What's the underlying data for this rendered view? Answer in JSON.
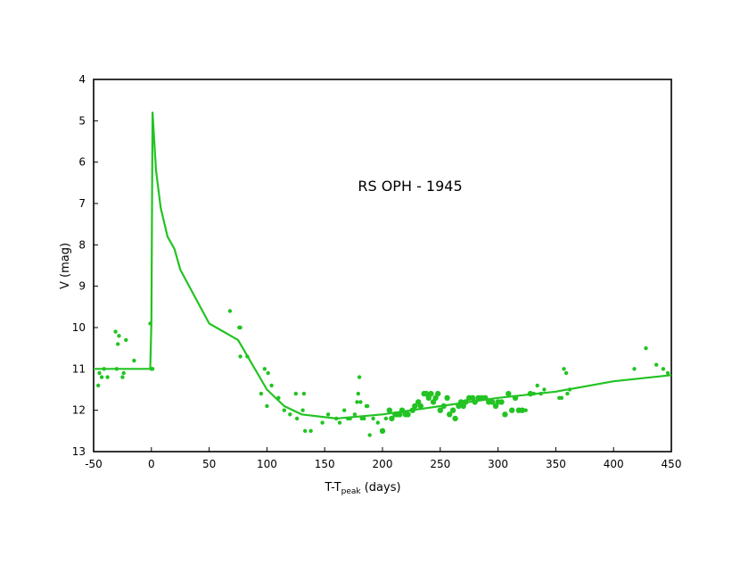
{
  "chart_data": {
    "type": "scatter",
    "title": "RS OPH - 1945",
    "xlabel_main": "T-T",
    "xlabel_sub": "peak",
    "xlabel_tail": " (days)",
    "ylabel": "V (mag)",
    "xlim": [
      -50,
      450
    ],
    "ylim": [
      4,
      13
    ],
    "y_inverted": true,
    "xticks": [
      -50,
      0,
      50,
      100,
      150,
      200,
      250,
      300,
      350,
      400,
      450
    ],
    "yticks": [
      4,
      5,
      6,
      7,
      8,
      9,
      10,
      11,
      12,
      13
    ],
    "grid": false,
    "legend": "none",
    "color": "#22c322",
    "series": [
      {
        "type": "line",
        "x": [
          -50,
          -1,
          0,
          1,
          4,
          8,
          14,
          20,
          25,
          50,
          75,
          100,
          115,
          130,
          160,
          200,
          300,
          350,
          400,
          450
        ],
        "y": [
          11.0,
          11.0,
          9.9,
          4.8,
          6.2,
          7.1,
          7.8,
          8.1,
          8.6,
          9.9,
          10.3,
          11.5,
          11.9,
          12.1,
          12.2,
          12.1,
          11.7,
          11.55,
          11.3,
          11.15
        ]
      },
      {
        "type": "scatter",
        "x": [
          -46,
          -45,
          -43,
          -41,
          -38,
          -31,
          -30,
          -29,
          -28,
          -25,
          -24,
          -22,
          -15,
          -1,
          0,
          1,
          68,
          76,
          77,
          77,
          83,
          95,
          98,
          100,
          101,
          104,
          110,
          115,
          120,
          125,
          126,
          131,
          132,
          133,
          138,
          148,
          153,
          160,
          163,
          167,
          170,
          172,
          176,
          178,
          179,
          180,
          181,
          182,
          184,
          186,
          187,
          189,
          192,
          196,
          200,
          203,
          206,
          208,
          211,
          213,
          215,
          217,
          220,
          222,
          226,
          228,
          231,
          233,
          236,
          238,
          240,
          242,
          244,
          246,
          248,
          250,
          253,
          256,
          258,
          261,
          263,
          266,
          268,
          270,
          272,
          275,
          278,
          280,
          283,
          286,
          289,
          292,
          295,
          298,
          300,
          303,
          306,
          309,
          312,
          315,
          318,
          321,
          324,
          328,
          331,
          334,
          337,
          340,
          353,
          355,
          357,
          359,
          360,
          362,
          418,
          428,
          437,
          443,
          447
        ],
        "y": [
          11.4,
          11.1,
          11.2,
          11.0,
          11.2,
          10.1,
          11.0,
          10.4,
          10.2,
          11.2,
          11.1,
          10.3,
          10.8,
          9.9,
          11.0,
          11.0,
          9.6,
          10.0,
          10.7,
          10.0,
          10.7,
          11.6,
          11.0,
          11.9,
          11.1,
          11.4,
          11.7,
          12.0,
          12.1,
          11.6,
          12.2,
          12.0,
          11.6,
          12.5,
          12.5,
          12.3,
          12.1,
          12.2,
          12.3,
          12.0,
          12.2,
          12.2,
          12.1,
          11.8,
          11.6,
          11.2,
          11.8,
          12.2,
          12.2,
          11.9,
          11.9,
          12.6,
          12.2,
          12.3,
          12.5,
          12.2,
          12.0,
          12.2,
          12.1,
          12.1,
          12.1,
          12.0,
          12.1,
          12.1,
          12.0,
          11.9,
          11.8,
          11.9,
          11.6,
          11.6,
          11.7,
          11.6,
          11.8,
          11.7,
          11.6,
          12.0,
          11.9,
          11.7,
          12.1,
          12.0,
          12.2,
          11.9,
          11.8,
          11.9,
          11.8,
          11.7,
          11.7,
          11.8,
          11.7,
          11.7,
          11.7,
          11.8,
          11.8,
          11.9,
          11.8,
          11.8,
          12.1,
          11.6,
          12.0,
          11.7,
          12.0,
          12.0,
          12.0,
          11.6,
          11.6,
          11.4,
          11.6,
          11.5,
          11.7,
          11.7,
          11.0,
          11.1,
          11.6,
          11.5,
          11.0,
          10.5,
          10.9,
          11.0,
          11.1
        ],
        "r": [
          2.2,
          2.2,
          2.2,
          2.2,
          2.2,
          2.2,
          2.2,
          2.2,
          2.2,
          2.2,
          2.2,
          2.2,
          2.2,
          2.2,
          2.2,
          2.2,
          2.2,
          2.2,
          2.2,
          2.2,
          2.2,
          2.2,
          2.2,
          2.2,
          2.2,
          2.2,
          2.2,
          2.2,
          2.2,
          2.2,
          2.2,
          2.2,
          2.2,
          2.2,
          2.2,
          2.2,
          2.2,
          2.2,
          2.2,
          2.2,
          2.2,
          2.2,
          2.2,
          2.2,
          2.2,
          2.2,
          2.2,
          2.2,
          2.2,
          2.2,
          2.2,
          2.2,
          2.2,
          2.2,
          3.2,
          2.2,
          3.2,
          3.2,
          3.2,
          3.2,
          3.2,
          3.2,
          3.2,
          3.2,
          3.2,
          3.2,
          3.2,
          3.2,
          3.2,
          3.2,
          3.2,
          3.2,
          3.2,
          3.2,
          3.2,
          3.2,
          3.2,
          3.2,
          3.2,
          3.2,
          3.2,
          3.2,
          3.2,
          3.2,
          3.2,
          3.2,
          3.2,
          3.2,
          3.2,
          3.2,
          3.2,
          3.2,
          3.2,
          3.2,
          3.2,
          3.2,
          3.2,
          3.2,
          3.2,
          3.2,
          3.2,
          3.2,
          2.2,
          3.2,
          2.2,
          2.2,
          2.2,
          2.2,
          2.2,
          2.2,
          2.2,
          2.2,
          2.2,
          2.2,
          2.2,
          2.2,
          2.2,
          2.2,
          2.2
        ]
      }
    ]
  }
}
